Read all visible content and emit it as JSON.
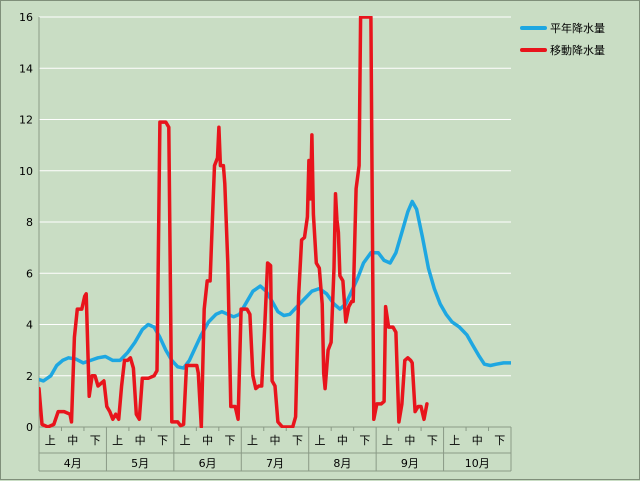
{
  "chart_data": {
    "type": "line",
    "title": "",
    "xlabel": "",
    "ylabel": "",
    "ylim": [
      0,
      16
    ],
    "y_ticks": [
      "0",
      "2",
      "4",
      "6",
      "8",
      "10",
      "12",
      "14",
      "16"
    ],
    "grid": true,
    "legend_position": "top-right",
    "months": [
      "4月",
      "5月",
      "6月",
      "7月",
      "8月",
      "9月",
      "10月"
    ],
    "decades": [
      "上",
      "中",
      "下"
    ],
    "series": [
      {
        "name": "平年降水量",
        "color": "#1ea7e1",
        "values": [
          [
            0,
            1.85
          ],
          [
            3,
            1.8
          ],
          [
            8,
            2.0
          ],
          [
            12,
            2.4
          ],
          [
            16,
            2.6
          ],
          [
            20,
            2.7
          ],
          [
            25,
            2.65
          ],
          [
            30,
            2.5
          ],
          [
            35,
            2.6
          ],
          [
            40,
            2.7
          ],
          [
            45,
            2.75
          ],
          [
            50,
            2.6
          ],
          [
            55,
            2.6
          ],
          [
            60,
            2.9
          ],
          [
            65,
            3.3
          ],
          [
            70,
            3.8
          ],
          [
            74,
            4.0
          ],
          [
            78,
            3.9
          ],
          [
            82,
            3.5
          ],
          [
            86,
            3.0
          ],
          [
            90,
            2.6
          ],
          [
            94,
            2.35
          ],
          [
            98,
            2.3
          ],
          [
            102,
            2.6
          ],
          [
            106,
            3.1
          ],
          [
            110,
            3.6
          ],
          [
            115,
            4.1
          ],
          [
            120,
            4.4
          ],
          [
            124,
            4.5
          ],
          [
            128,
            4.4
          ],
          [
            132,
            4.3
          ],
          [
            136,
            4.4
          ],
          [
            140,
            4.8
          ],
          [
            145,
            5.3
          ],
          [
            150,
            5.5
          ],
          [
            154,
            5.3
          ],
          [
            158,
            4.9
          ],
          [
            162,
            4.5
          ],
          [
            166,
            4.35
          ],
          [
            170,
            4.4
          ],
          [
            175,
            4.7
          ],
          [
            180,
            5.0
          ],
          [
            185,
            5.3
          ],
          [
            190,
            5.4
          ],
          [
            195,
            5.2
          ],
          [
            200,
            4.8
          ],
          [
            204,
            4.6
          ],
          [
            208,
            4.8
          ],
          [
            212,
            5.3
          ],
          [
            216,
            5.8
          ],
          [
            220,
            6.4
          ],
          [
            225,
            6.8
          ],
          [
            230,
            6.8
          ],
          [
            234,
            6.5
          ],
          [
            238,
            6.4
          ],
          [
            242,
            6.8
          ],
          [
            246,
            7.6
          ],
          [
            250,
            8.4
          ],
          [
            253,
            8.8
          ],
          [
            256,
            8.5
          ],
          [
            260,
            7.4
          ],
          [
            264,
            6.2
          ],
          [
            268,
            5.4
          ],
          [
            272,
            4.8
          ],
          [
            276,
            4.4
          ],
          [
            280,
            4.1
          ],
          [
            285,
            3.9
          ],
          [
            290,
            3.6
          ],
          [
            294,
            3.2
          ],
          [
            298,
            2.8
          ],
          [
            302,
            2.45
          ],
          [
            306,
            2.4
          ],
          [
            310,
            2.45
          ],
          [
            315,
            2.5
          ],
          [
            320,
            2.5
          ]
        ]
      },
      {
        "name": "移動降水量",
        "color": "#e8141c",
        "values": [
          [
            0,
            1.5
          ],
          [
            2,
            0.1
          ],
          [
            6,
            0.0
          ],
          [
            10,
            0.1
          ],
          [
            13,
            0.6
          ],
          [
            17,
            0.6
          ],
          [
            21,
            0.5
          ],
          [
            22,
            0.2
          ],
          [
            24,
            3.5
          ],
          [
            26,
            4.6
          ],
          [
            29,
            4.6
          ],
          [
            31,
            5.1
          ],
          [
            32,
            5.2
          ],
          [
            34,
            1.2
          ],
          [
            36,
            2.0
          ],
          [
            38,
            2.0
          ],
          [
            40,
            1.6
          ],
          [
            44,
            1.8
          ],
          [
            46,
            0.8
          ],
          [
            48,
            0.6
          ],
          [
            50,
            0.3
          ],
          [
            52,
            0.5
          ],
          [
            54,
            0.3
          ],
          [
            56,
            1.6
          ],
          [
            58,
            2.6
          ],
          [
            60,
            2.6
          ],
          [
            62,
            2.7
          ],
          [
            64,
            2.3
          ],
          [
            66,
            0.5
          ],
          [
            68,
            0.3
          ],
          [
            70,
            1.9
          ],
          [
            74,
            1.9
          ],
          [
            78,
            2.0
          ],
          [
            80,
            2.2
          ],
          [
            82,
            11.9
          ],
          [
            86,
            11.9
          ],
          [
            88,
            11.7
          ],
          [
            90,
            0.2
          ],
          [
            94,
            0.2
          ],
          [
            96,
            0.05
          ],
          [
            98,
            0.1
          ],
          [
            100,
            2.4
          ],
          [
            104,
            2.4
          ],
          [
            107,
            2.4
          ],
          [
            108,
            2.1
          ],
          [
            110,
            0.0
          ],
          [
            112,
            4.6
          ],
          [
            114,
            5.7
          ],
          [
            116,
            5.7
          ],
          [
            118,
            8.8
          ],
          [
            119,
            10.2
          ],
          [
            121,
            10.5
          ],
          [
            122,
            11.7
          ],
          [
            123,
            10.2
          ],
          [
            125,
            10.2
          ],
          [
            126,
            9.5
          ],
          [
            128,
            6.4
          ],
          [
            130,
            0.8
          ],
          [
            133,
            0.8
          ],
          [
            135,
            0.3
          ],
          [
            137,
            4.6
          ],
          [
            141,
            4.6
          ],
          [
            143,
            4.4
          ],
          [
            145,
            2.0
          ],
          [
            147,
            1.5
          ],
          [
            149,
            1.6
          ],
          [
            151,
            1.6
          ],
          [
            153,
            3.9
          ],
          [
            155,
            6.4
          ],
          [
            157,
            6.3
          ],
          [
            158,
            1.8
          ],
          [
            160,
            1.6
          ],
          [
            162,
            0.2
          ],
          [
            165,
            0.0
          ],
          [
            168,
            0.0
          ],
          [
            172,
            0.0
          ],
          [
            174,
            0.4
          ],
          [
            176,
            5.1
          ],
          [
            178,
            7.3
          ],
          [
            180,
            7.4
          ],
          [
            182,
            8.2
          ],
          [
            183,
            10.4
          ],
          [
            184,
            8.9
          ],
          [
            185,
            11.4
          ],
          [
            186,
            8.3
          ],
          [
            188,
            6.4
          ],
          [
            190,
            6.2
          ],
          [
            192,
            4.8
          ],
          [
            193,
            2.1
          ],
          [
            194,
            1.5
          ],
          [
            196,
            3.0
          ],
          [
            198,
            3.3
          ],
          [
            200,
            6.2
          ],
          [
            201,
            9.1
          ],
          [
            202,
            8.1
          ],
          [
            203,
            7.6
          ],
          [
            204,
            5.9
          ],
          [
            206,
            5.7
          ],
          [
            208,
            4.1
          ],
          [
            210,
            4.7
          ],
          [
            212,
            4.9
          ],
          [
            213,
            4.9
          ],
          [
            215,
            9.3
          ],
          [
            217,
            10.2
          ],
          [
            218,
            16.0
          ],
          [
            225,
            16.0
          ],
          [
            227,
            0.3
          ],
          [
            229,
            0.9
          ],
          [
            232,
            0.9
          ],
          [
            234,
            1.0
          ],
          [
            235,
            4.7
          ],
          [
            237,
            3.9
          ],
          [
            240,
            3.9
          ],
          [
            242,
            3.7
          ],
          [
            244,
            0.2
          ],
          [
            246,
            0.9
          ],
          [
            248,
            2.6
          ],
          [
            250,
            2.7
          ],
          [
            252,
            2.6
          ],
          [
            253,
            2.5
          ],
          [
            255,
            0.6
          ],
          [
            257,
            0.8
          ],
          [
            259,
            0.8
          ],
          [
            261,
            0.3
          ],
          [
            263,
            0.9
          ]
        ]
      }
    ]
  }
}
